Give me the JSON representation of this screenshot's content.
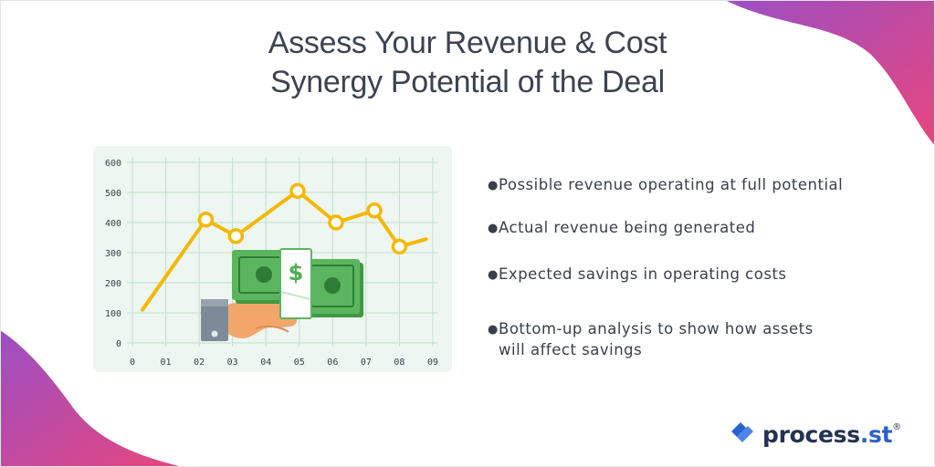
{
  "title": {
    "line1": "Assess Your Revenue & Cost",
    "line2": "Synergy Potential of the Deal"
  },
  "bullets": [
    {
      "text": "Possible revenue operating at full potential"
    },
    {
      "text": "Actual revenue being generated"
    },
    {
      "text": "Expected savings in operating costs"
    },
    {
      "line1": "Bottom-up analysis to show how assets",
      "line2": "will affect savings"
    }
  ],
  "logo": {
    "name": "process",
    "suffix": ".st",
    "mark": "®",
    "icon": "process-st-logo-icon"
  },
  "colors": {
    "accent_pink": "#e8467c",
    "accent_purple": "#9b4fc4",
    "line": "#f5b800",
    "chart_bg": "#eef6f1",
    "grid": "#bde0cc",
    "money_green": "#4caf50",
    "logo_blue": "#2a62c9",
    "logo_navy": "#243252"
  },
  "chart_data": {
    "type": "line",
    "x": [
      "0",
      "01",
      "02",
      "03",
      "04",
      "05",
      "06",
      "07",
      "08",
      "09"
    ],
    "y_ticks": [
      "0",
      "100",
      "200",
      "300",
      "400",
      "500",
      "600"
    ],
    "ylim": [
      0,
      600
    ],
    "points": [
      {
        "x": 0.3,
        "y": 110,
        "marker": false
      },
      {
        "x": 2.2,
        "y": 410,
        "marker": true
      },
      {
        "x": 3.1,
        "y": 355,
        "marker": true
      },
      {
        "x": 4.95,
        "y": 505,
        "marker": true
      },
      {
        "x": 6.1,
        "y": 400,
        "marker": true
      },
      {
        "x": 7.25,
        "y": 440,
        "marker": true
      },
      {
        "x": 8.0,
        "y": 320,
        "marker": true
      },
      {
        "x": 8.8,
        "y": 345,
        "marker": false
      }
    ],
    "grid": true,
    "illustration": "hand-holding-money-icon",
    "money_symbol": "$"
  }
}
